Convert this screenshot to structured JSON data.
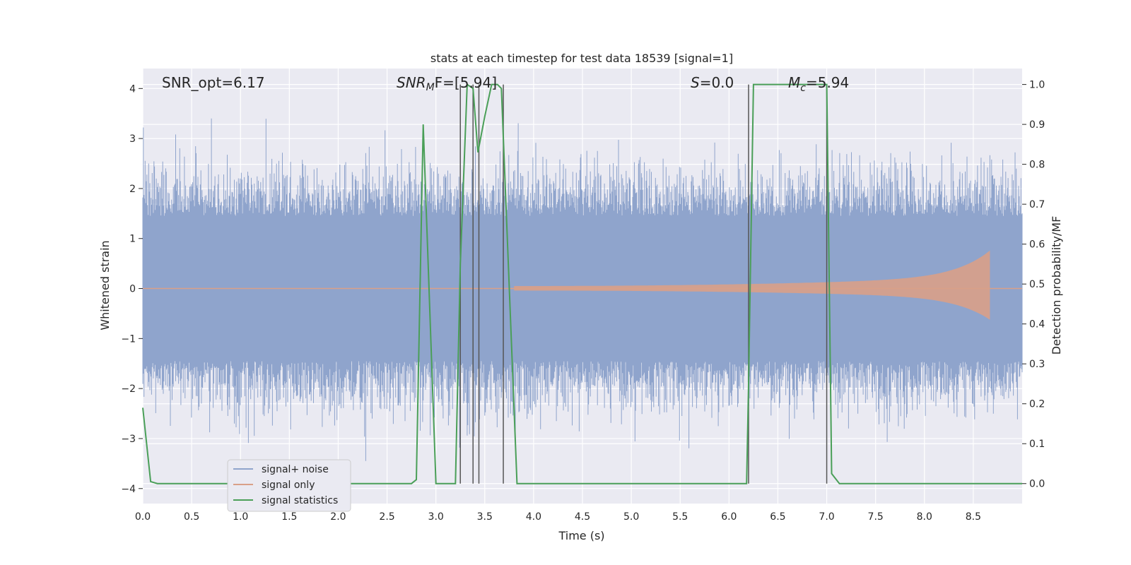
{
  "chart_data": {
    "type": "line",
    "title": "stats at each timestep for test data 18539 [signal=1]",
    "xlabel": "Time (s)",
    "ylabel": "Whitened strain",
    "ylabel_right": "Detection probability/MF",
    "xlim": [
      0,
      9.0
    ],
    "ylim": [
      -4.3,
      4.4
    ],
    "ylim_right": [
      -0.05,
      1.04
    ],
    "xticks": [
      "0.0",
      "0.5",
      "1.0",
      "1.5",
      "2.0",
      "2.5",
      "3.0",
      "3.5",
      "4.0",
      "4.5",
      "5.0",
      "5.5",
      "6.0",
      "6.5",
      "7.0",
      "7.5",
      "8.0",
      "8.5"
    ],
    "yticks": [
      "4",
      "3",
      "2",
      "1",
      "0",
      "−1",
      "−2",
      "−3",
      "−4"
    ],
    "yticks_right": [
      "1.0",
      "0.9",
      "0.8",
      "0.7",
      "0.6",
      "0.5",
      "0.4",
      "0.3",
      "0.2",
      "0.1",
      "0.0"
    ],
    "grid": true,
    "legend_position": "lower-left",
    "annotations": {
      "snr_opt": "SNR_opt=6.17",
      "snr_mf_base": "SNR",
      "snr_mf_sub": "M",
      "snr_mf_rest": "F=[5.94]",
      "s_italic": "S",
      "s_rest": "=0.0",
      "mc_base": "M",
      "mc_sub": "c",
      "mc_rest": "=5.94"
    },
    "series": [
      {
        "name": "signal+ noise",
        "color": "#8fa4cc",
        "description_values": "whitened noisy strain, amplitude roughly within [-3.4, 3.4]"
      },
      {
        "name": "signal only",
        "color": "#d9a088",
        "chirp_start_s": 3.8,
        "chirp_end_s": 8.67,
        "peak_amplitude": 0.76
      },
      {
        "name": "signal statistics",
        "color": "#4a9f58",
        "x": [
          0.0,
          0.08,
          0.15,
          2.75,
          2.8,
          2.87,
          3.0,
          3.2,
          3.25,
          3.32,
          3.38,
          3.43,
          3.5,
          3.57,
          3.63,
          3.67,
          3.83,
          3.9,
          6.18,
          6.2,
          6.25,
          6.32,
          6.96,
          7.0,
          7.05,
          7.13,
          9.0
        ],
        "y": [
          0.19,
          0.005,
          0.0,
          0.0,
          0.01,
          0.9,
          0.0,
          0.0,
          0.55,
          1.0,
          0.99,
          0.83,
          0.92,
          1.0,
          1.0,
          0.99,
          0.0,
          0.0,
          0.0,
          0.25,
          1.0,
          1.0,
          1.0,
          1.0,
          0.025,
          0.0,
          0.0
        ]
      }
    ],
    "vertical_lines_s": [
      3.25,
      3.38,
      3.44,
      3.69,
      6.2,
      7.0
    ]
  }
}
